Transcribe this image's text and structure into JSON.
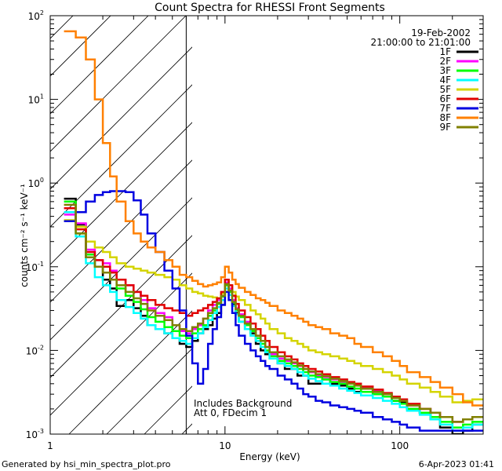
{
  "chart_data": {
    "type": "line",
    "title": "Count Spectra for RHESSI Front Segments",
    "xlabel": "Energy (keV)",
    "ylabel": "counts cm⁻² s⁻¹ keV⁻¹",
    "x_scale": "log",
    "y_scale": "log",
    "xlim": [
      1,
      300
    ],
    "ylim": [
      0.001,
      100
    ],
    "x_ticks": [
      {
        "value": 1,
        "label": "1"
      },
      {
        "value": 10,
        "label": "10"
      },
      {
        "value": 100,
        "label": "100"
      }
    ],
    "y_ticks": [
      {
        "value": 0.001,
        "mantissa": "10",
        "exp": "-3"
      },
      {
        "value": 0.01,
        "mantissa": "10",
        "exp": "-2"
      },
      {
        "value": 0.1,
        "mantissa": "10",
        "exp": "-1"
      },
      {
        "value": 1,
        "mantissa": "10",
        "exp": "0"
      },
      {
        "value": 10,
        "mantissa": "10",
        "exp": "1"
      },
      {
        "value": 100,
        "mantissa": "10",
        "exp": "2"
      }
    ],
    "date": "19-Feb-2002",
    "time_range": "21:00:00 to 21:01:00",
    "hatched_region_max_keV": 6,
    "notes": [
      "Includes Background",
      "Att 0, FDecim 1"
    ],
    "footer_left": "Generated by hsi_min_spectra_plot.pro",
    "footer_right": "6-Apr-2023 01:41",
    "bin_edges": [
      1.2,
      1.4,
      1.6,
      1.8,
      2.0,
      2.2,
      2.4,
      2.7,
      3.0,
      3.3,
      3.6,
      4.0,
      4.5,
      5.0,
      5.5,
      6.0,
      6.5,
      7.0,
      7.5,
      8.0,
      8.5,
      9.0,
      9.5,
      10.0,
      10.5,
      11.0,
      11.5,
      12.0,
      13.0,
      14.0,
      15.0,
      16.0,
      17.0,
      18.0,
      20.0,
      22.0,
      24.0,
      26.0,
      28.0,
      30.0,
      33.0,
      36.0,
      40.0,
      45.0,
      50.0,
      55.0,
      60.0,
      70.0,
      80.0,
      90.0,
      100.0,
      110.0,
      130.0,
      150.0,
      170.0,
      200.0,
      230.0,
      260.0,
      300.0
    ],
    "series": [
      {
        "name": "1F",
        "color": "#000000",
        "values": [
          0.65,
          0.32,
          0.13,
          0.1,
          0.07,
          0.055,
          0.034,
          0.04,
          0.032,
          0.026,
          0.02,
          0.018,
          0.016,
          0.014,
          0.012,
          0.011,
          0.013,
          0.016,
          0.018,
          0.02,
          0.024,
          0.028,
          0.035,
          0.06,
          0.05,
          0.035,
          0.028,
          0.022,
          0.018,
          0.016,
          0.012,
          0.01,
          0.009,
          0.008,
          0.007,
          0.006,
          0.006,
          0.005,
          0.005,
          0.004,
          0.004,
          0.0045,
          0.004,
          0.0038,
          0.0035,
          0.0032,
          0.0035,
          0.003,
          0.0028,
          0.0025,
          0.0024,
          0.002,
          0.0018,
          0.0015,
          0.0012,
          0.001,
          0.0011,
          0.0013
        ]
      },
      {
        "name": "2F",
        "color": "#ff00ff",
        "values": [
          0.42,
          0.33,
          0.16,
          0.12,
          0.11,
          0.09,
          0.07,
          0.06,
          0.05,
          0.04,
          0.032,
          0.028,
          0.025,
          0.02,
          0.017,
          0.016,
          0.018,
          0.02,
          0.024,
          0.03,
          0.035,
          0.04,
          0.048,
          0.065,
          0.055,
          0.04,
          0.032,
          0.027,
          0.022,
          0.018,
          0.015,
          0.013,
          0.011,
          0.009,
          0.008,
          0.0075,
          0.007,
          0.0065,
          0.006,
          0.0055,
          0.005,
          0.0048,
          0.0045,
          0.0042,
          0.004,
          0.0038,
          0.0036,
          0.0033,
          0.003,
          0.0028,
          0.0026,
          0.0022,
          0.002,
          0.0018,
          0.0016,
          0.0014,
          0.0015,
          0.0016
        ]
      },
      {
        "name": "3F",
        "color": "#00ff00",
        "values": [
          0.6,
          0.25,
          0.14,
          0.1,
          0.085,
          0.07,
          0.055,
          0.045,
          0.038,
          0.031,
          0.025,
          0.022,
          0.019,
          0.017,
          0.015,
          0.014,
          0.016,
          0.018,
          0.02,
          0.026,
          0.03,
          0.036,
          0.044,
          0.06,
          0.05,
          0.037,
          0.03,
          0.025,
          0.02,
          0.017,
          0.014,
          0.012,
          0.01,
          0.0085,
          0.0075,
          0.007,
          0.0065,
          0.006,
          0.0055,
          0.005,
          0.0048,
          0.0045,
          0.0042,
          0.004,
          0.0037,
          0.0035,
          0.0032,
          0.003,
          0.0028,
          0.0025,
          0.0023,
          0.002,
          0.0018,
          0.0016,
          0.0014,
          0.0012,
          0.0013,
          0.0014
        ]
      },
      {
        "name": "4F",
        "color": "#00ffff",
        "values": [
          0.45,
          0.23,
          0.11,
          0.075,
          0.06,
          0.05,
          0.04,
          0.033,
          0.028,
          0.024,
          0.02,
          0.018,
          0.016,
          0.014,
          0.013,
          0.012,
          0.014,
          0.016,
          0.019,
          0.023,
          0.028,
          0.033,
          0.04,
          0.055,
          0.046,
          0.034,
          0.027,
          0.022,
          0.018,
          0.015,
          0.013,
          0.011,
          0.0095,
          0.008,
          0.007,
          0.0065,
          0.006,
          0.0055,
          0.005,
          0.0046,
          0.0043,
          0.004,
          0.0038,
          0.0035,
          0.0033,
          0.0031,
          0.0029,
          0.0027,
          0.0025,
          0.0023,
          0.0021,
          0.0019,
          0.0017,
          0.0015,
          0.0013,
          0.0011,
          0.0012,
          0.0013
        ]
      },
      {
        "name": "5F",
        "color": "#d4d400",
        "values": [
          0.36,
          0.3,
          0.2,
          0.17,
          0.15,
          0.13,
          0.11,
          0.1,
          0.095,
          0.09,
          0.085,
          0.08,
          0.075,
          0.07,
          0.06,
          0.055,
          0.05,
          0.048,
          0.045,
          0.044,
          0.043,
          0.042,
          0.048,
          0.07,
          0.06,
          0.05,
          0.044,
          0.04,
          0.035,
          0.03,
          0.027,
          0.024,
          0.021,
          0.018,
          0.016,
          0.014,
          0.013,
          0.012,
          0.011,
          0.01,
          0.0095,
          0.009,
          0.0085,
          0.008,
          0.0075,
          0.007,
          0.0065,
          0.006,
          0.0055,
          0.005,
          0.0045,
          0.004,
          0.0036,
          0.0032,
          0.0028,
          0.0024,
          0.0025,
          0.0026
        ]
      },
      {
        "name": "6F",
        "color": "#e00000",
        "values": [
          0.5,
          0.28,
          0.15,
          0.12,
          0.1,
          0.085,
          0.07,
          0.06,
          0.05,
          0.045,
          0.04,
          0.035,
          0.032,
          0.03,
          0.028,
          0.026,
          0.028,
          0.03,
          0.032,
          0.035,
          0.038,
          0.042,
          0.05,
          0.07,
          0.06,
          0.045,
          0.036,
          0.03,
          0.025,
          0.021,
          0.018,
          0.015,
          0.013,
          0.011,
          0.0095,
          0.0085,
          0.0078,
          0.007,
          0.0065,
          0.006,
          0.0056,
          0.0052,
          0.0048,
          0.0045,
          0.0042,
          0.004,
          0.0037,
          0.0034,
          0.0031,
          0.0028,
          0.0026,
          0.0023,
          0.002,
          0.0018,
          0.0016,
          0.0014,
          0.0015,
          0.0016
        ]
      },
      {
        "name": "7F",
        "color": "#0000e0",
        "values": [
          0.35,
          0.45,
          0.6,
          0.72,
          0.78,
          0.8,
          0.8,
          0.78,
          0.62,
          0.42,
          0.25,
          0.15,
          0.09,
          0.055,
          0.03,
          0.015,
          0.007,
          0.004,
          0.006,
          0.012,
          0.018,
          0.025,
          0.035,
          0.05,
          0.04,
          0.028,
          0.02,
          0.015,
          0.012,
          0.01,
          0.0085,
          0.0075,
          0.0065,
          0.006,
          0.005,
          0.0045,
          0.004,
          0.0035,
          0.003,
          0.0028,
          0.0025,
          0.0024,
          0.0022,
          0.0021,
          0.002,
          0.0019,
          0.0018,
          0.0016,
          0.0015,
          0.0014,
          0.0013,
          0.0012,
          0.0011,
          0.0011,
          0.0011,
          0.0011,
          0.0011,
          0.0011
        ]
      },
      {
        "name": "8F",
        "color": "#ff8000",
        "values": [
          65,
          55,
          30,
          10,
          3,
          1.2,
          0.6,
          0.35,
          0.25,
          0.2,
          0.17,
          0.15,
          0.12,
          0.1,
          0.08,
          0.075,
          0.068,
          0.062,
          0.058,
          0.06,
          0.062,
          0.065,
          0.075,
          0.1,
          0.085,
          0.07,
          0.062,
          0.056,
          0.05,
          0.046,
          0.042,
          0.04,
          0.037,
          0.034,
          0.03,
          0.028,
          0.026,
          0.024,
          0.022,
          0.02,
          0.019,
          0.018,
          0.016,
          0.015,
          0.014,
          0.012,
          0.011,
          0.0095,
          0.0085,
          0.0075,
          0.0065,
          0.0055,
          0.0048,
          0.0042,
          0.0036,
          0.003,
          0.0024,
          0.0022
        ]
      },
      {
        "name": "9F",
        "color": "#808000",
        "values": [
          0.55,
          0.25,
          0.13,
          0.1,
          0.085,
          0.07,
          0.06,
          0.05,
          0.042,
          0.036,
          0.03,
          0.026,
          0.023,
          0.02,
          0.018,
          0.017,
          0.019,
          0.021,
          0.024,
          0.028,
          0.032,
          0.037,
          0.045,
          0.062,
          0.052,
          0.038,
          0.031,
          0.026,
          0.021,
          0.018,
          0.015,
          0.013,
          0.011,
          0.0095,
          0.0085,
          0.0078,
          0.0072,
          0.0066,
          0.006,
          0.0056,
          0.0052,
          0.0049,
          0.0046,
          0.0043,
          0.004,
          0.0038,
          0.0035,
          0.0032,
          0.003,
          0.0027,
          0.0025,
          0.0022,
          0.002,
          0.0018,
          0.0016,
          0.0014,
          0.0015,
          0.0016
        ]
      }
    ]
  }
}
